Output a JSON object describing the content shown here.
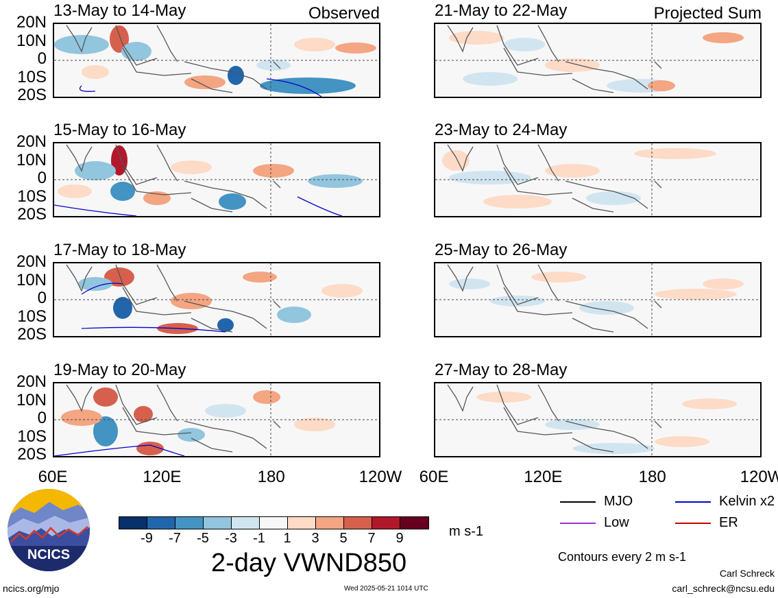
{
  "panels": {
    "left": [
      {
        "title": "13-May to 14-May",
        "label": "Observed"
      },
      {
        "title": "15-May to 16-May",
        "label": ""
      },
      {
        "title": "17-May to 18-May",
        "label": ""
      },
      {
        "title": "19-May to 20-May",
        "label": ""
      }
    ],
    "right": [
      {
        "title": "21-May to 22-May",
        "label": "Projected Sum"
      },
      {
        "title": "23-May to 24-May",
        "label": ""
      },
      {
        "title": "25-May to 26-May",
        "label": ""
      },
      {
        "title": "27-May to 28-May",
        "label": ""
      }
    ]
  },
  "lat_labels": [
    "20N",
    "10N",
    "0",
    "10S",
    "20S"
  ],
  "lon_labels": [
    "60E",
    "120E",
    "180",
    "120W"
  ],
  "colorbar": {
    "colors": [
      "#08306b",
      "#2166ac",
      "#4393c3",
      "#92c5de",
      "#d1e5f0",
      "#f7f7f7",
      "#fddbc7",
      "#f4a582",
      "#d6604d",
      "#b2182b",
      "#67001f"
    ],
    "ticks": [
      "-9",
      "-7",
      "-5",
      "-3",
      "-1",
      "1",
      "3",
      "5",
      "7",
      "9"
    ],
    "units": "m s-1",
    "variable": "2-day VWND850"
  },
  "legend": {
    "items": [
      {
        "label": "MJO",
        "color": "#000000"
      },
      {
        "label": "Kelvin x2",
        "color": "#0000cc"
      },
      {
        "label": "Low",
        "color": "#9933cc"
      },
      {
        "label": "ER",
        "color": "#cc0000"
      }
    ],
    "contours_note": "Contours every 2 m s-1"
  },
  "logo": {
    "text": "NCICS"
  },
  "footer": {
    "url": "ncics.org/mjo",
    "timestamp": "Wed 2025-05-21 1014 UTC",
    "author": "Carl Schreck",
    "email": "carl_schreck@ncsu.edu"
  },
  "chart_data": {
    "type": "heatmap",
    "title": "2-day VWND850",
    "colorbar_levels": [
      -9,
      -7,
      -5,
      -3,
      -1,
      1,
      3,
      5,
      7,
      9
    ],
    "units": "m s-1",
    "x_ticks": [
      "60E",
      "120E",
      "180",
      "120W"
    ],
    "y_ticks": [
      "20N",
      "10N",
      "0",
      "10S",
      "20S"
    ],
    "xlim": [
      "60E",
      "120W"
    ],
    "ylim": [
      "20S",
      "20N"
    ],
    "panels": [
      "13-May to 14-May",
      "15-May to 16-May",
      "17-May to 18-May",
      "19-May to 20-May",
      "21-May to 22-May",
      "23-May to 24-May",
      "25-May to 26-May",
      "27-May to 28-May"
    ]
  }
}
